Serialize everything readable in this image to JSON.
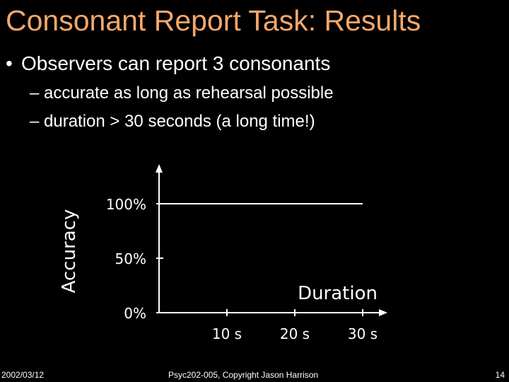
{
  "slide": {
    "title": "Consonant Report Task: Results",
    "bullet": "Observers can report 3 consonants",
    "sub_bullets": [
      "accurate as long as rehearsal possible",
      "duration > 30 seconds (a long time!)"
    ]
  },
  "footer": {
    "date": "2002/03/12",
    "copyright": "Psyc202-005, Copyright Jason Harrison",
    "page": "14"
  },
  "chart_data": {
    "type": "line",
    "xlabel": "Duration",
    "ylabel": "Accuracy",
    "x_ticks": [
      10,
      20,
      30
    ],
    "x_tick_labels": [
      "10 s",
      "20 s",
      "30 s"
    ],
    "y_ticks": [
      0,
      50,
      100
    ],
    "y_tick_labels": [
      "0%",
      "50%",
      "100%"
    ],
    "xlim": [
      0,
      33
    ],
    "ylim": [
      0,
      100
    ],
    "series": [
      {
        "x": [
          0,
          30
        ],
        "y": [
          100,
          100
        ]
      }
    ],
    "grid": false,
    "colors": {
      "axis": "#ffffff",
      "line": "#ffffff",
      "title": "#f5a86a"
    }
  }
}
